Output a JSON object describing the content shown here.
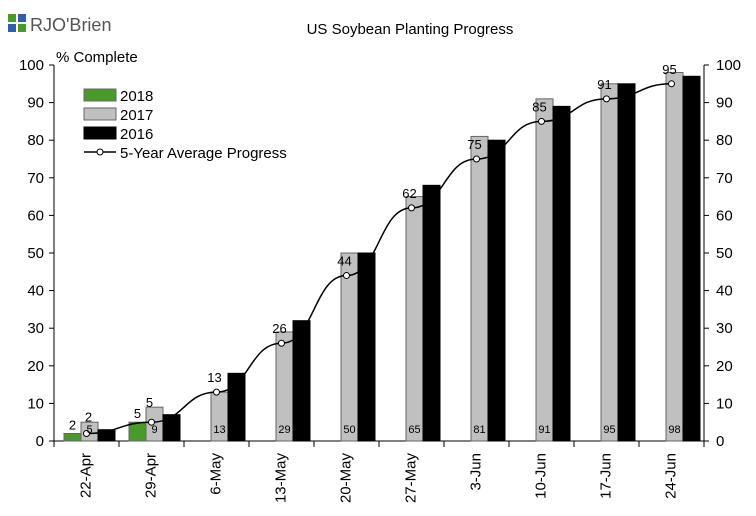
{
  "logo": {
    "brand_text": "RJO'Brien"
  },
  "chart_data": {
    "type": "bar",
    "title": "US Soybean Planting Progress",
    "ylabel": "% Complete",
    "ylim": [
      0,
      100
    ],
    "yticks": [
      0,
      10,
      20,
      30,
      40,
      50,
      60,
      70,
      80,
      90,
      100
    ],
    "categories": [
      "22-Apr",
      "29-Apr",
      "6-May",
      "13-May",
      "20-May",
      "27-May",
      "3-Jun",
      "10-Jun",
      "17-Jun",
      "24-Jun"
    ],
    "series": [
      {
        "name": "2018",
        "kind": "bar",
        "color": "#4a9a2a",
        "values": [
          2,
          5,
          null,
          null,
          null,
          null,
          null,
          null,
          null,
          null
        ],
        "labels": [
          "2",
          "5",
          "",
          "",
          "",
          "",
          "",
          "",
          "",
          ""
        ]
      },
      {
        "name": "2017",
        "kind": "bar",
        "color": "#c0c0c0",
        "values": [
          5,
          9,
          13,
          29,
          50,
          65,
          81,
          91,
          95,
          98
        ],
        "labels": [
          "5",
          "9",
          "13",
          "29",
          "50",
          "65",
          "81",
          "91",
          "95",
          "98"
        ]
      },
      {
        "name": "2016",
        "kind": "bar",
        "color": "#000000",
        "values": [
          3,
          7,
          18,
          32,
          50,
          68,
          80,
          89,
          95,
          97
        ]
      },
      {
        "name": "5-Year Average Progress",
        "kind": "line",
        "color": "#000000",
        "values": [
          2,
          5,
          13,
          26,
          44,
          62,
          75,
          85,
          91,
          95
        ],
        "labels": [
          "2",
          "5",
          "13",
          "26",
          "44",
          "62",
          "75",
          "85",
          "91",
          "95"
        ]
      }
    ],
    "legend_position": "top-left",
    "right_axis": true,
    "grid": false
  }
}
